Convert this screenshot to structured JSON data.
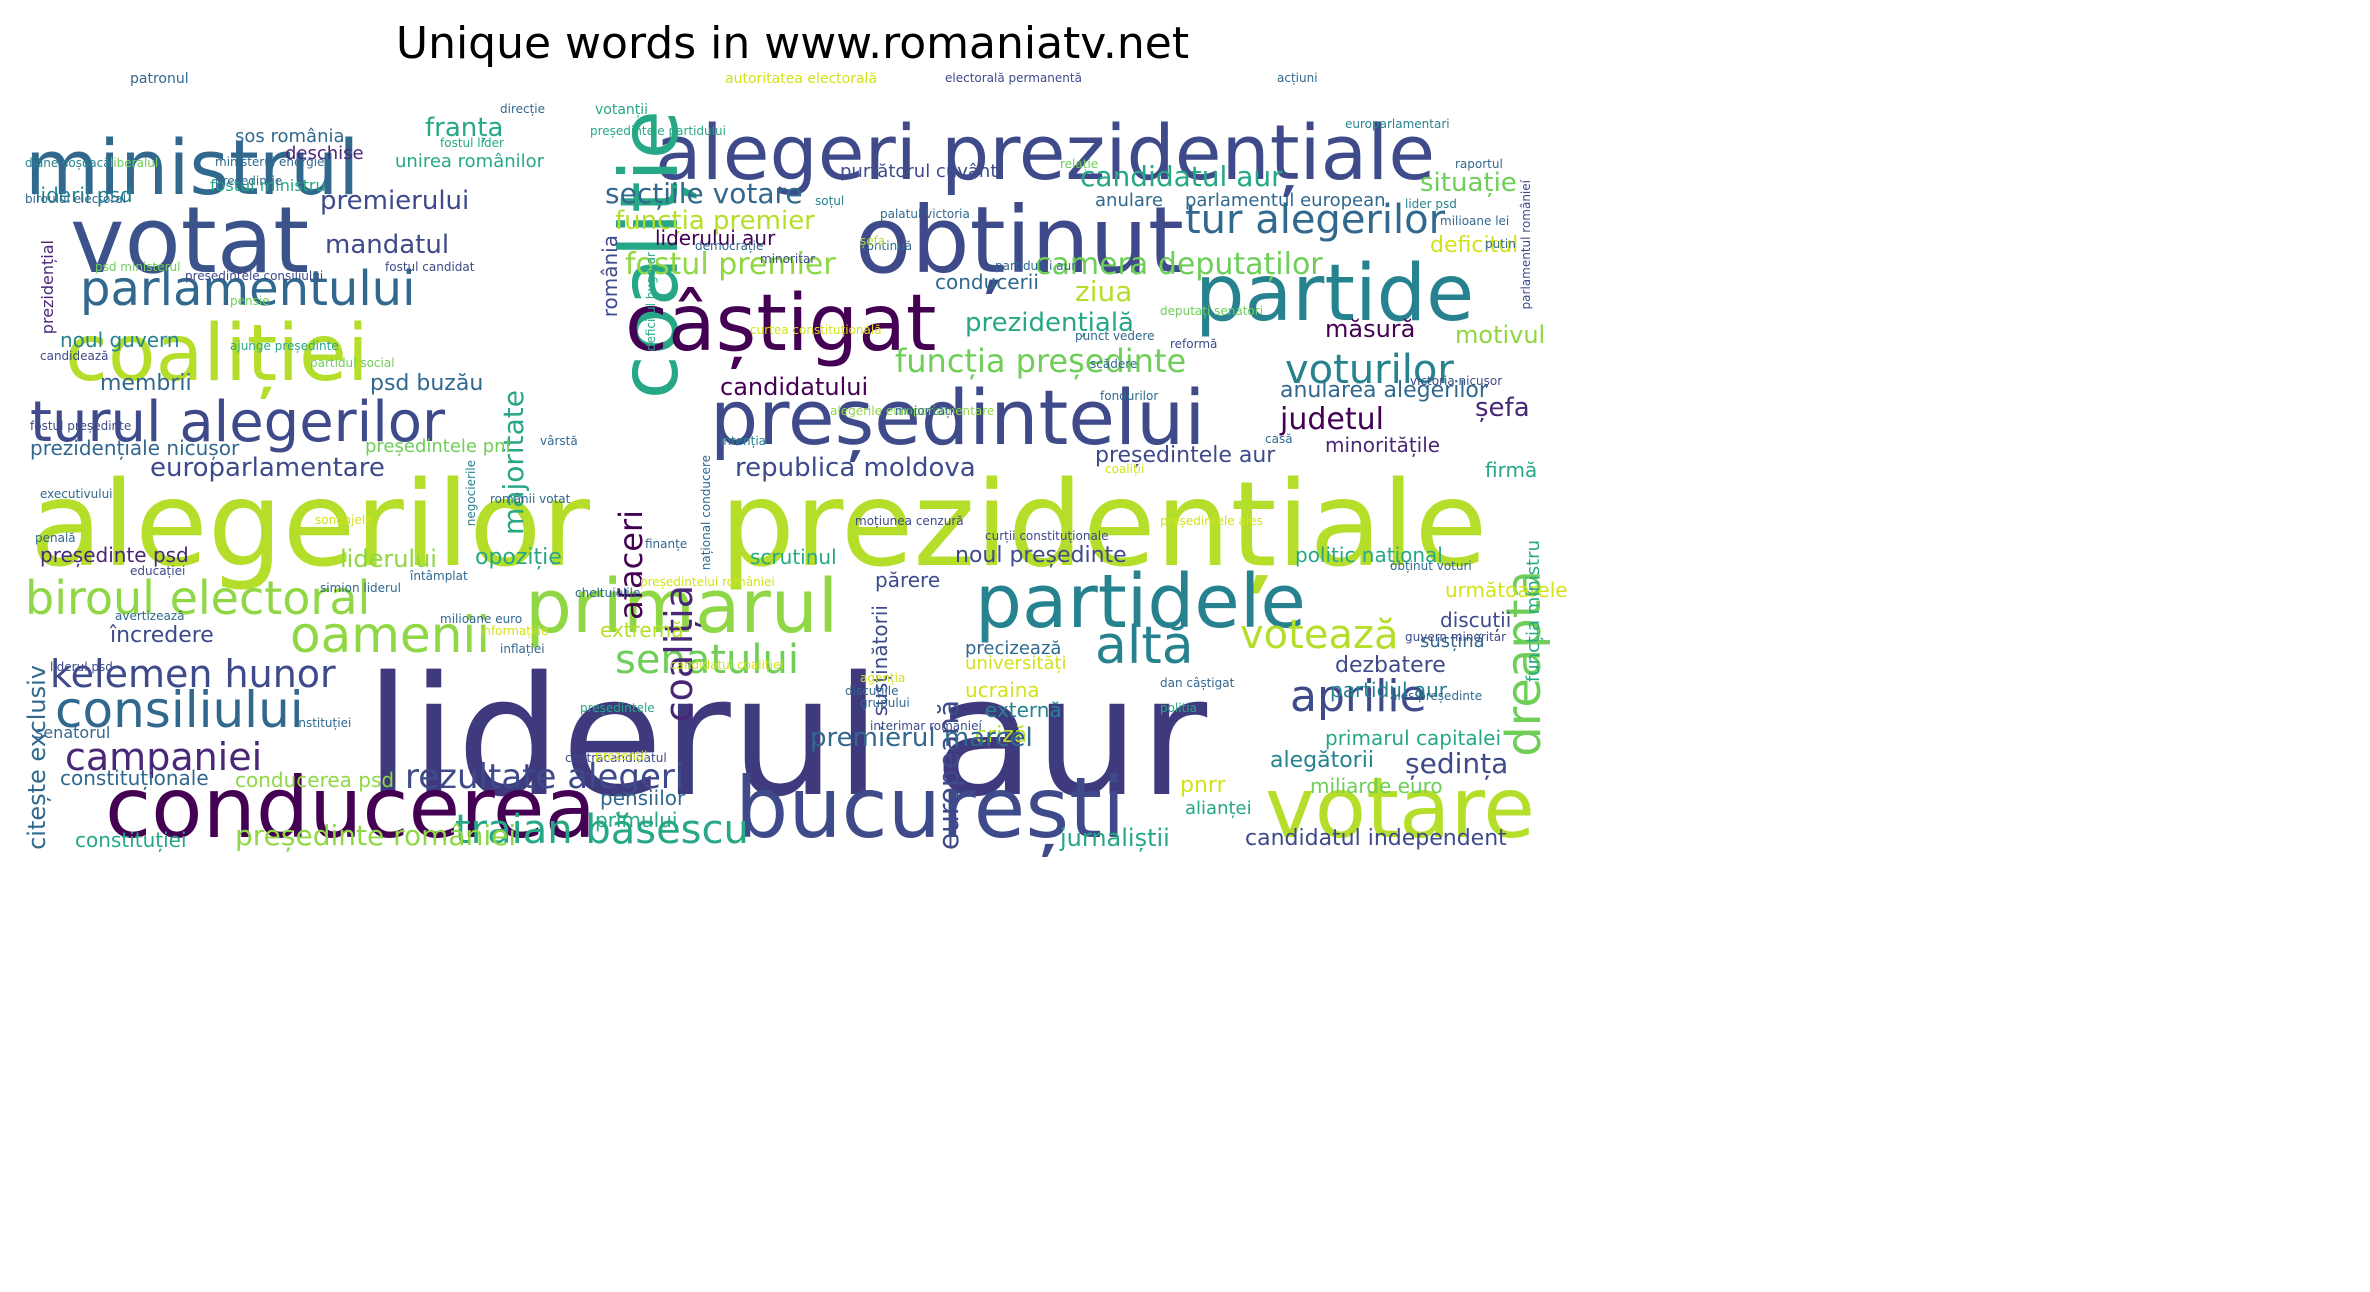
{
  "title": "Unique words in www.romaniatv.net",
  "palette": [
    "#440154",
    "#482777",
    "#3e4a89",
    "#31688e",
    "#26828e",
    "#1f9e89",
    "#35b779",
    "#6ece58",
    "#b5de2b"
  ],
  "words": [
    {
      "text": "liderul aur",
      "c": "#3e3a7d"
    },
    {
      "text": "alegerilor",
      "c": "#b5de2b"
    },
    {
      "text": "prezidențiale",
      "c": "#b5de2b"
    },
    {
      "text": "alegeri prezidențiale",
      "c": "#3e4a89"
    },
    {
      "text": "coaliție",
      "c": "#26a786"
    },
    {
      "text": "ministrul",
      "c": "#31688e"
    },
    {
      "text": "votat",
      "c": "#3b528b"
    },
    {
      "text": "obținut",
      "c": "#3e4a89"
    },
    {
      "text": "partide",
      "c": "#26828e"
    },
    {
      "text": "președintelui",
      "c": "#3e4a89"
    },
    {
      "text": "coaliției",
      "c": "#b5de2b"
    },
    {
      "text": "câștigat",
      "c": "#440154"
    },
    {
      "text": "parlamentului",
      "c": "#31688e"
    },
    {
      "text": "turul alegerilor",
      "c": "#3e4a89"
    },
    {
      "text": "tur alegerilor",
      "c": "#31688e"
    },
    {
      "text": "partidele",
      "c": "#26828e"
    },
    {
      "text": "primarul",
      "c": "#8fd744"
    },
    {
      "text": "conducerea",
      "c": "#440154"
    },
    {
      "text": "bucurești",
      "c": "#3e4a89"
    },
    {
      "text": "votare",
      "c": "#b5de2b"
    },
    {
      "text": "biroul electoral",
      "c": "#8fd744"
    },
    {
      "text": "oamenii",
      "c": "#8fd744"
    },
    {
      "text": "consiliului",
      "c": "#31688e"
    },
    {
      "text": "kelemen hunor",
      "c": "#3e4a89"
    },
    {
      "text": "campaniei",
      "c": "#482777"
    },
    {
      "text": "rezultate alegeri",
      "c": "#3e4a89"
    },
    {
      "text": "traian băsescu",
      "c": "#26a786"
    },
    {
      "text": "senatului",
      "c": "#6ece58"
    },
    {
      "text": "altă",
      "c": "#26828e"
    },
    {
      "text": "votează",
      "c": "#b5de2b"
    },
    {
      "text": "aprilie",
      "c": "#3e4a89"
    },
    {
      "text": "dreapta",
      "c": "#6ece58"
    },
    {
      "text": "voturilor",
      "c": "#26828e"
    },
    {
      "text": "coaliția",
      "c": "#482777"
    },
    {
      "text": "afaceri",
      "c": "#440154"
    },
    {
      "text": "majoritate",
      "c": "#26a786"
    },
    {
      "text": "europeană",
      "c": "#3e4a89"
    },
    {
      "text": "funcția președinte",
      "c": "#6ece58"
    },
    {
      "text": "fostul premier",
      "c": "#8fd744"
    },
    {
      "text": "funcția premier",
      "c": "#b5de2b"
    },
    {
      "text": "secțiile votare",
      "c": "#31688e"
    },
    {
      "text": "candidatul aur",
      "c": "#26a786"
    },
    {
      "text": "camera deputaților",
      "c": "#6ece58"
    },
    {
      "text": "prezidențială",
      "c": "#26a786"
    },
    {
      "text": "franța",
      "c": "#26a786"
    },
    {
      "text": "mandatul",
      "c": "#3e4a89"
    },
    {
      "text": "premierului",
      "c": "#3e4a89"
    },
    {
      "text": "europarlamentare",
      "c": "#3e4a89"
    },
    {
      "text": "republica moldova",
      "c": "#3e4a89"
    },
    {
      "text": "candidatului",
      "c": "#440154"
    },
    {
      "text": "judetul",
      "c": "#440154"
    },
    {
      "text": "șefa",
      "c": "#482777"
    },
    {
      "text": "situație",
      "c": "#6ece58"
    },
    {
      "text": "deficitul",
      "c": "#d2e21b"
    },
    {
      "text": "măsură",
      "c": "#440154"
    },
    {
      "text": "motivul",
      "c": "#8fd744"
    },
    {
      "text": "anularea alegerilor",
      "c": "#31688e"
    },
    {
      "text": "președintele aur",
      "c": "#3e4a89"
    },
    {
      "text": "minoritățile",
      "c": "#482777"
    },
    {
      "text": "firmă",
      "c": "#26a786"
    },
    {
      "text": "liderului aur",
      "c": "#440154"
    },
    {
      "text": "conducerii",
      "c": "#31688e"
    },
    {
      "text": "ziua",
      "c": "#b5de2b"
    },
    {
      "text": "membrii",
      "c": "#31688e"
    },
    {
      "text": "psd buzău",
      "c": "#31688e"
    },
    {
      "text": "noul guvern",
      "c": "#26828e"
    },
    {
      "text": "liderii psd",
      "c": "#26828e"
    },
    {
      "text": "fostul ministru",
      "c": "#26a786"
    },
    {
      "text": "unirea românilor",
      "c": "#26a786"
    },
    {
      "text": "sos românia",
      "c": "#31688e"
    },
    {
      "text": "deschise",
      "c": "#482777"
    },
    {
      "text": "purtătorul cuvânt",
      "c": "#3e4a89"
    },
    {
      "text": "anulare",
      "c": "#31688e"
    },
    {
      "text": "parlamentul european",
      "c": "#31688e"
    },
    {
      "text": "prezidențiale nicușor",
      "c": "#31688e"
    },
    {
      "text": "președintele pnl",
      "c": "#6ece58"
    },
    {
      "text": "liderului",
      "c": "#8fd744"
    },
    {
      "text": "opoziție",
      "c": "#26a786"
    },
    {
      "text": "președinte psd",
      "c": "#482777"
    },
    {
      "text": "noul președinte",
      "c": "#3e4a89"
    },
    {
      "text": "scrutinul",
      "c": "#26a786"
    },
    {
      "text": "politic național",
      "c": "#26a786"
    },
    {
      "text": "părere",
      "c": "#3e4a89"
    },
    {
      "text": "încredere",
      "c": "#3e4a89"
    },
    {
      "text": "extremă",
      "c": "#b5de2b"
    },
    {
      "text": "precizează",
      "c": "#31688e"
    },
    {
      "text": "universități",
      "c": "#d2e21b"
    },
    {
      "text": "ucraina",
      "c": "#d2e21b"
    },
    {
      "text": "externă",
      "c": "#26828e"
    },
    {
      "text": "criză",
      "c": "#b5de2b"
    },
    {
      "text": "susținătorii",
      "c": "#3e4a89"
    },
    {
      "text": "dezbatere",
      "c": "#3e4a89"
    },
    {
      "text": "partidul aur",
      "c": "#26828e"
    },
    {
      "text": "susțină",
      "c": "#31688e"
    },
    {
      "text": "discuții",
      "c": "#3e4a89"
    },
    {
      "text": "următoarele",
      "c": "#d2e21b"
    },
    {
      "text": "primarul capitalei",
      "c": "#26a786"
    },
    {
      "text": "funcția ministru",
      "c": "#26a786"
    },
    {
      "text": "premierul marcel",
      "c": "#31688e"
    },
    {
      "text": "alegătorii",
      "c": "#26828e"
    },
    {
      "text": "ședința",
      "c": "#3e4a89"
    },
    {
      "text": "pnrr",
      "c": "#d2e21b"
    },
    {
      "text": "miliarde euro",
      "c": "#6ece58"
    },
    {
      "text": "alianței",
      "c": "#26a786"
    },
    {
      "text": "constituționale",
      "c": "#31688e"
    },
    {
      "text": "conducerea psd",
      "c": "#8fd744"
    },
    {
      "text": "pensiilor",
      "c": "#31688e"
    },
    {
      "text": "primului",
      "c": "#26a786"
    },
    {
      "text": "președinte româniei",
      "c": "#8fd744"
    },
    {
      "text": "constituției",
      "c": "#26a786"
    },
    {
      "text": "jurnaliștii",
      "c": "#26a786"
    },
    {
      "text": "candidatul independent",
      "c": "#3e4a89"
    },
    {
      "text": "citește exclusiv",
      "c": "#31688e"
    },
    {
      "text": "senatorul",
      "c": "#31688e"
    },
    {
      "text": "patronul",
      "c": "#31688e"
    },
    {
      "text": "autoritatea electorală",
      "c": "#d2e21b"
    },
    {
      "text": "electorală permanentă",
      "c": "#3e4a89"
    },
    {
      "text": "acțiuni",
      "c": "#31688e"
    },
    {
      "text": "direcție",
      "c": "#31688e"
    },
    {
      "text": "votanții",
      "c": "#26a786"
    },
    {
      "text": "europarlamentari",
      "c": "#26828e"
    },
    {
      "text": "președintele partidului",
      "c": "#26a786"
    },
    {
      "text": "fostul lider",
      "c": "#26a786"
    },
    {
      "text": "diane șoșoacă",
      "c": "#26828e"
    },
    {
      "text": "liberalul",
      "c": "#6ece58"
    },
    {
      "text": "președinție",
      "c": "#31688e"
    },
    {
      "text": "ministerul energiei",
      "c": "#31688e"
    },
    {
      "text": "relație",
      "c": "#6ece58"
    },
    {
      "text": "raportul",
      "c": "#31688e"
    },
    {
      "text": "biroului electoral",
      "c": "#31688e"
    },
    {
      "text": "soțul",
      "c": "#26828e"
    },
    {
      "text": "lider psd",
      "c": "#26828e"
    },
    {
      "text": "palatul victoria",
      "c": "#31688e"
    },
    {
      "text": "milioane lei",
      "c": "#31688e"
    },
    {
      "text": "parlamentul românieí",
      "c": "#3e4a89"
    },
    {
      "text": "putin",
      "c": "#31688e"
    },
    {
      "text": "deficitul bugetar",
      "c": "#26a786"
    },
    {
      "text": "democrație",
      "c": "#31688e"
    },
    {
      "text": "continuă",
      "c": "#31688e"
    },
    {
      "text": "românia",
      "c": "#3e4a89"
    },
    {
      "text": "minoritar",
      "c": "#3e4a89"
    },
    {
      "text": "partidului aur",
      "c": "#31688e"
    },
    {
      "text": "fostul candidat",
      "c": "#3e4a89"
    },
    {
      "text": "președintele consiliului",
      "c": "#3e4a89"
    },
    {
      "text": "psd ministerul",
      "c": "#6ece58"
    },
    {
      "text": "șefa",
      "c": "#b5de2b"
    },
    {
      "text": "pensie",
      "c": "#6ece58"
    },
    {
      "text": "prezidențial",
      "c": "#482777"
    },
    {
      "text": "punct vedere",
      "c": "#31688e"
    },
    {
      "text": "deputați senatori",
      "c": "#6ece58"
    },
    {
      "text": "curtea constituțională",
      "c": "#d2e21b"
    },
    {
      "text": "ajunge președinte",
      "c": "#26a786"
    },
    {
      "text": "partidul social",
      "c": "#6ece58"
    },
    {
      "text": "candidează",
      "c": "#3e4a89"
    },
    {
      "text": "reformă",
      "c": "#3e4a89"
    },
    {
      "text": "scădere",
      "c": "#31688e"
    },
    {
      "text": "victoria nicușor",
      "c": "#3e4a89"
    },
    {
      "text": "fondurilor",
      "c": "#31688e"
    },
    {
      "text": "alegerile europarlamentare",
      "c": "#8fd744"
    },
    {
      "text": "majorități",
      "c": "#31688e"
    },
    {
      "text": "fostul președinte",
      "c": "#3e4a89"
    },
    {
      "text": "vârstă",
      "c": "#31688e"
    },
    {
      "text": "executivului",
      "c": "#31688e"
    },
    {
      "text": "coaliții",
      "c": "#d2e21b"
    },
    {
      "text": "casă",
      "c": "#31688e"
    },
    {
      "text": "românii votat",
      "c": "#31688e"
    },
    {
      "text": "negocierile",
      "c": "#26828e"
    },
    {
      "text": "național conducere",
      "c": "#31688e"
    },
    {
      "text": "intenția",
      "c": "#26828e"
    },
    {
      "text": "sondajele",
      "c": "#d2e21b"
    },
    {
      "text": "penală",
      "c": "#31688e"
    },
    {
      "text": "finanțe",
      "c": "#31688e"
    },
    {
      "text": "moțiunea cenzură",
      "c": "#3e4a89"
    },
    {
      "text": "președintele ales",
      "c": "#d2e21b"
    },
    {
      "text": "curții constituționale",
      "c": "#3e4a89"
    },
    {
      "text": "obținut voturi",
      "c": "#31688e"
    },
    {
      "text": "întâmplat",
      "c": "#31688e"
    },
    {
      "text": "educației",
      "c": "#3e4a89"
    },
    {
      "text": "simion liderul",
      "c": "#31688e"
    },
    {
      "text": "președintelui româniei",
      "c": "#d2e21b"
    },
    {
      "text": "cheltuielile",
      "c": "#31688e"
    },
    {
      "text": "milioane euro",
      "c": "#31688e"
    },
    {
      "text": "avertizează",
      "c": "#31688e"
    },
    {
      "text": "informațiile",
      "c": "#d2e21b"
    },
    {
      "text": "guvern minoritar",
      "c": "#3e4a89"
    },
    {
      "text": "inflației",
      "c": "#31688e"
    },
    {
      "text": "liderul psd",
      "c": "#3e4a89"
    },
    {
      "text": "candidatul coaliției",
      "c": "#d2e21b"
    },
    {
      "text": "agenția",
      "c": "#d2e21b"
    },
    {
      "text": "contracandidatul",
      "c": "#3e4a89"
    },
    {
      "text": "prezenții",
      "c": "#d2e21b"
    },
    {
      "text": "grupului",
      "c": "#31688e"
    },
    {
      "text": "interimar românieí",
      "c": "#3e4a89"
    },
    {
      "text": "discuțiile",
      "c": "#31688e"
    },
    {
      "text": "politia",
      "c": "#26a786"
    },
    {
      "text": "dan câștigat",
      "c": "#31688e"
    },
    {
      "text": "ales președinte",
      "c": "#31688e"
    },
    {
      "text": "instituției",
      "c": "#31688e"
    },
    {
      "text": "președintele",
      "c": "#26a786"
    }
  ]
}
